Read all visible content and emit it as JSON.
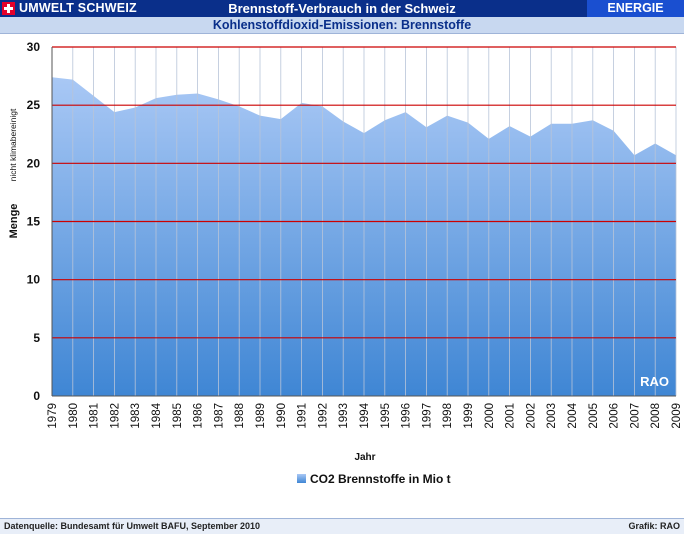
{
  "header": {
    "brand": "UMWELT SCHWEIZ",
    "title": "Brennstoff-Verbrauch in der Schweiz",
    "section": "ENERGIE"
  },
  "subtitle": "Kohlenstoffdioxid-Emissionen: Brennstoffe",
  "footer": {
    "source": "Datenquelle: Bundesamt für Umwelt BAFU, September 2010",
    "credit": "Grafik: RAO"
  },
  "watermark": "RAO",
  "colors": {
    "header_bg": "#0a2f8a",
    "accent": "#1a4fd0",
    "area_top": "#a9c8f5",
    "area_bottom": "#3f86d4",
    "gridline": "#cc0000"
  },
  "chart_data": {
    "type": "area",
    "xlabel": "Jahr",
    "ylabel": "Menge",
    "ylabel_note": "nicht klimabereinigt",
    "ylim": [
      0,
      30
    ],
    "yticks": [
      0,
      5,
      10,
      15,
      20,
      25,
      30
    ],
    "grid": true,
    "legend_position": "bottom-center",
    "categories": [
      "1979",
      "1980",
      "1981",
      "1982",
      "1983",
      "1984",
      "1985",
      "1986",
      "1987",
      "1988",
      "1989",
      "1990",
      "1991",
      "1992",
      "1993",
      "1994",
      "1995",
      "1996",
      "1997",
      "1998",
      "1999",
      "2000",
      "2001",
      "2002",
      "2003",
      "2004",
      "2005",
      "2006",
      "2007",
      "2008",
      "2009"
    ],
    "series": [
      {
        "name": "CO2 Brennstoffe in Mio t",
        "values": [
          27.4,
          27.2,
          25.8,
          24.4,
          24.8,
          25.6,
          25.9,
          26.0,
          25.5,
          24.9,
          24.1,
          23.8,
          25.2,
          24.9,
          23.6,
          22.6,
          23.7,
          24.4,
          23.1,
          24.1,
          23.5,
          22.1,
          23.2,
          22.3,
          23.4,
          23.4,
          23.7,
          22.8,
          20.7,
          21.7,
          20.7
        ]
      }
    ]
  }
}
